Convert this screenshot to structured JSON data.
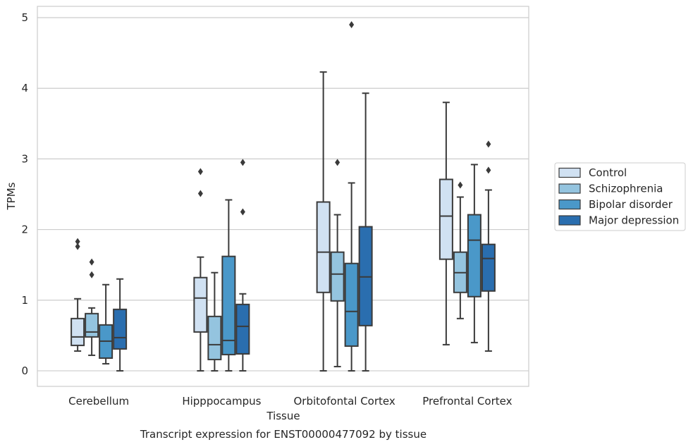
{
  "chart_data": {
    "type": "boxplot",
    "caption": "Transcript expression for ENST00000477092 by tissue",
    "xlabel": "Tissue",
    "ylabel": "TPMs",
    "ylim": [
      -0.22,
      5.16
    ],
    "yticks": [
      0,
      1,
      2,
      3,
      4,
      5
    ],
    "grid": true,
    "legend_position": "right",
    "categories": [
      "Cerebellum",
      "Hipppocampus",
      "Orbitofontal Cortex",
      "Prefrontal Cortex"
    ],
    "series": [
      {
        "name": "Control",
        "color": "#d0e1f2",
        "boxes": [
          {
            "whislo": 0.28,
            "q1": 0.36,
            "med": 0.48,
            "q3": 0.74,
            "whishi": 1.02,
            "fliers": [
              1.76,
              1.83
            ]
          },
          {
            "whislo": 0.0,
            "q1": 0.55,
            "med": 1.03,
            "q3": 1.32,
            "whishi": 1.61,
            "fliers": [
              2.51,
              2.82
            ]
          },
          {
            "whislo": 0.0,
            "q1": 1.11,
            "med": 1.68,
            "q3": 2.39,
            "whishi": 4.23,
            "fliers": []
          },
          {
            "whislo": 0.37,
            "q1": 1.58,
            "med": 2.19,
            "q3": 2.71,
            "whishi": 3.8,
            "fliers": []
          }
        ]
      },
      {
        "name": "Schizophrenia",
        "color": "#94c4df",
        "boxes": [
          {
            "whislo": 0.22,
            "q1": 0.48,
            "med": 0.55,
            "q3": 0.81,
            "whishi": 0.89,
            "fliers": [
              1.36,
              1.54
            ]
          },
          {
            "whislo": 0.0,
            "q1": 0.16,
            "med": 0.37,
            "q3": 0.77,
            "whishi": 1.39,
            "fliers": []
          },
          {
            "whislo": 0.06,
            "q1": 0.99,
            "med": 1.37,
            "q3": 1.68,
            "whishi": 2.21,
            "fliers": [
              2.95
            ]
          },
          {
            "whislo": 0.74,
            "q1": 1.11,
            "med": 1.39,
            "q3": 1.68,
            "whishi": 2.46,
            "fliers": [
              2.63
            ]
          }
        ]
      },
      {
        "name": "Bipolar disorder",
        "color": "#4a98c9",
        "boxes": [
          {
            "whislo": 0.1,
            "q1": 0.18,
            "med": 0.42,
            "q3": 0.65,
            "whishi": 1.22,
            "fliers": []
          },
          {
            "whislo": 0.0,
            "q1": 0.23,
            "med": 0.43,
            "q3": 1.62,
            "whishi": 2.42,
            "fliers": []
          },
          {
            "whislo": 0.0,
            "q1": 0.35,
            "med": 0.84,
            "q3": 1.52,
            "whishi": 2.66,
            "fliers": [
              4.9
            ]
          },
          {
            "whislo": 0.4,
            "q1": 1.05,
            "med": 1.85,
            "q3": 2.21,
            "whishi": 2.92,
            "fliers": []
          }
        ]
      },
      {
        "name": "Major depression",
        "color": "#2a6eaf",
        "boxes": [
          {
            "whislo": 0.0,
            "q1": 0.31,
            "med": 0.47,
            "q3": 0.87,
            "whishi": 1.3,
            "fliers": []
          },
          {
            "whislo": 0.0,
            "q1": 0.24,
            "med": 0.63,
            "q3": 0.94,
            "whishi": 1.09,
            "fliers": [
              2.25,
              2.95
            ]
          },
          {
            "whislo": 0.0,
            "q1": 0.64,
            "med": 1.33,
            "q3": 2.04,
            "whishi": 3.93,
            "fliers": []
          },
          {
            "whislo": 0.28,
            "q1": 1.13,
            "med": 1.59,
            "q3": 1.79,
            "whishi": 2.56,
            "fliers": [
              2.84,
              3.21
            ]
          }
        ]
      }
    ]
  }
}
